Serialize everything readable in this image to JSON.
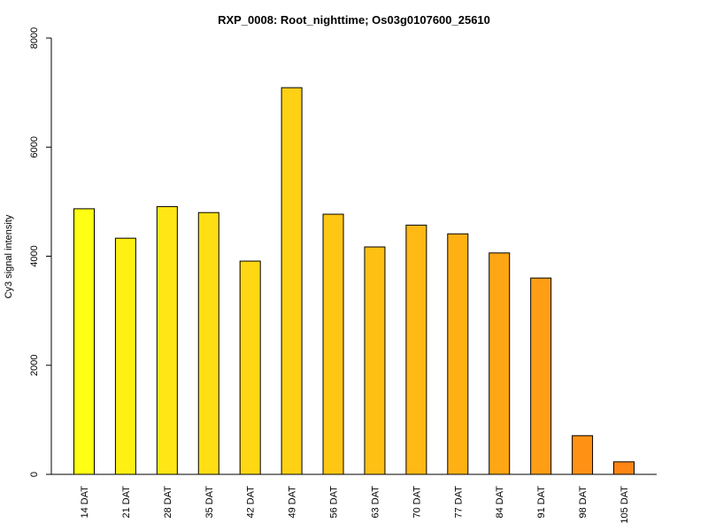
{
  "chart_data": {
    "type": "bar",
    "title": "RXP_0008: Root_nighttime; Os03g0107600_25610",
    "xlabel": "",
    "ylabel": "Cy3 signal intensity",
    "ylim": [
      0,
      8000
    ],
    "yticks": [
      0,
      2000,
      4000,
      6000,
      8000
    ],
    "categories": [
      "14 DAT",
      "21 DAT",
      "28 DAT",
      "35 DAT",
      "42 DAT",
      "49 DAT",
      "56 DAT",
      "63 DAT",
      "70 DAT",
      "77 DAT",
      "84 DAT",
      "91 DAT",
      "98 DAT",
      "105 DAT"
    ],
    "values": [
      4870,
      4330,
      4910,
      4800,
      3910,
      7090,
      4770,
      4170,
      4570,
      4410,
      4060,
      3600,
      710,
      230
    ],
    "colors": [
      "#ffff14",
      "#fff014",
      "#ffe614",
      "#ffdf14",
      "#ffd814",
      "#ffd114",
      "#ffc714",
      "#ffc014",
      "#ffb914",
      "#ffb114",
      "#ffa614",
      "#ff9e14",
      "#ff9214",
      "#ff8514"
    ],
    "grid": false,
    "legend": "none"
  }
}
